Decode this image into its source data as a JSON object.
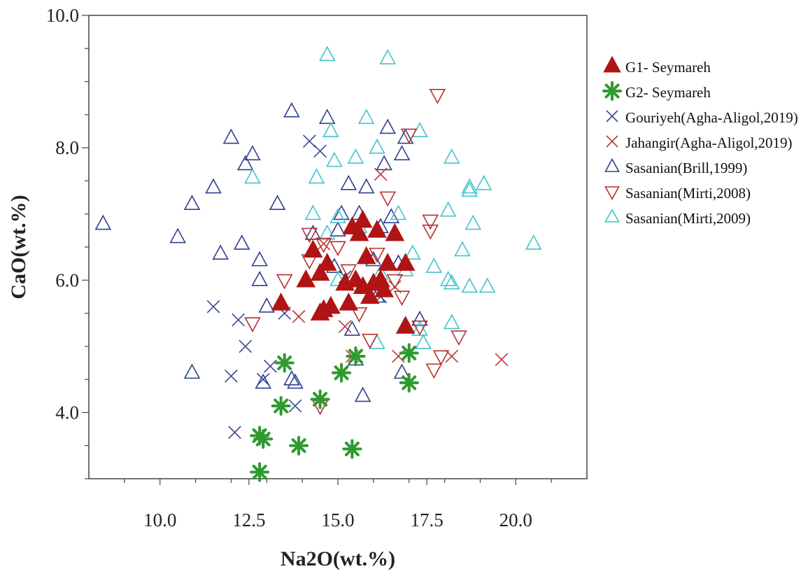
{
  "chart_data": {
    "type": "scatter",
    "xlabel": "Na2O(wt.%)",
    "ylabel": "CaO(wt.%)",
    "xlim": [
      8.0,
      22.0
    ],
    "ylim": [
      3.0,
      10.0
    ],
    "x_tick_labels": [
      "10.0",
      "12.5",
      "15.0",
      "17.5",
      "20.0"
    ],
    "y_tick_labels": [
      "4.0",
      "6.0",
      "8.0",
      "10.0"
    ],
    "legend_position": "right",
    "series": [
      {
        "name": "G1- Seymareh",
        "marker": "filled-triangle",
        "color": "#b01414",
        "points": [
          [
            13.4,
            5.65
          ],
          [
            14.1,
            6.0
          ],
          [
            14.3,
            6.45
          ],
          [
            14.5,
            6.1
          ],
          [
            14.5,
            5.5
          ],
          [
            14.6,
            5.55
          ],
          [
            14.7,
            6.25
          ],
          [
            14.8,
            5.6
          ],
          [
            15.2,
            5.95
          ],
          [
            15.3,
            5.65
          ],
          [
            15.4,
            6.8
          ],
          [
            15.5,
            6.0
          ],
          [
            15.6,
            6.7
          ],
          [
            15.7,
            6.9
          ],
          [
            15.8,
            6.35
          ],
          [
            15.9,
            5.75
          ],
          [
            16.0,
            5.95
          ],
          [
            16.1,
            6.75
          ],
          [
            16.2,
            6.0
          ],
          [
            16.3,
            5.85
          ],
          [
            16.4,
            6.25
          ],
          [
            16.6,
            6.7
          ],
          [
            16.9,
            6.25
          ],
          [
            16.9,
            5.3
          ],
          [
            15.7,
            5.9
          ]
        ]
      },
      {
        "name": "G2- Seymareh",
        "marker": "star",
        "color": "#2f9a2f",
        "points": [
          [
            12.8,
            3.65
          ],
          [
            12.9,
            3.6
          ],
          [
            12.8,
            3.1
          ],
          [
            13.4,
            4.1
          ],
          [
            13.5,
            4.75
          ],
          [
            13.9,
            3.5
          ],
          [
            14.5,
            4.2
          ],
          [
            15.1,
            4.6
          ],
          [
            15.4,
            3.45
          ],
          [
            15.5,
            4.85
          ],
          [
            17.0,
            4.9
          ],
          [
            17.0,
            4.45
          ]
        ]
      },
      {
        "name": "Gouriyeh(Agha-Aligol,2019)",
        "marker": "x",
        "color": "#3a4a8c",
        "points": [
          [
            11.5,
            5.6
          ],
          [
            12.2,
            5.4
          ],
          [
            12.0,
            4.55
          ],
          [
            12.4,
            5.0
          ],
          [
            12.9,
            4.5
          ],
          [
            13.1,
            4.7
          ],
          [
            13.5,
            5.5
          ],
          [
            13.8,
            4.1
          ],
          [
            12.1,
            3.7
          ],
          [
            14.2,
            8.1
          ],
          [
            14.5,
            7.95
          ],
          [
            16.2,
            5.75
          ],
          [
            15.2,
            6.05
          ]
        ]
      },
      {
        "name": "Jahangir(Agha-Aligol,2019)",
        "marker": "x",
        "color": "#b83a3a",
        "points": [
          [
            13.9,
            5.45
          ],
          [
            15.2,
            5.3
          ],
          [
            15.4,
            4.85
          ],
          [
            16.2,
            7.6
          ],
          [
            16.6,
            5.9
          ],
          [
            16.7,
            4.85
          ],
          [
            18.2,
            4.85
          ],
          [
            19.6,
            4.8
          ],
          [
            14.6,
            6.55
          ]
        ]
      },
      {
        "name": "Sasanian(Brill,1999)",
        "marker": "triangle",
        "color": "#2f3f8f",
        "points": [
          [
            8.4,
            6.85
          ],
          [
            10.5,
            6.65
          ],
          [
            10.9,
            7.15
          ],
          [
            10.9,
            4.6
          ],
          [
            11.5,
            7.4
          ],
          [
            11.7,
            6.4
          ],
          [
            12.0,
            8.15
          ],
          [
            12.3,
            6.55
          ],
          [
            12.4,
            7.75
          ],
          [
            12.6,
            7.9
          ],
          [
            12.8,
            6.3
          ],
          [
            12.8,
            6.0
          ],
          [
            13.0,
            5.6
          ],
          [
            12.9,
            4.45
          ],
          [
            13.3,
            7.15
          ],
          [
            13.7,
            8.55
          ],
          [
            13.7,
            4.5
          ],
          [
            13.8,
            4.45
          ],
          [
            14.3,
            6.7
          ],
          [
            14.7,
            8.45
          ],
          [
            14.9,
            6.2
          ],
          [
            15.1,
            7.0
          ],
          [
            15.3,
            7.45
          ],
          [
            15.4,
            5.25
          ],
          [
            15.5,
            4.8
          ],
          [
            15.6,
            7.0
          ],
          [
            15.7,
            4.25
          ],
          [
            15.8,
            7.4
          ],
          [
            16.0,
            6.3
          ],
          [
            16.1,
            5.75
          ],
          [
            16.3,
            7.75
          ],
          [
            16.4,
            8.3
          ],
          [
            16.5,
            6.95
          ],
          [
            16.7,
            6.25
          ],
          [
            16.8,
            7.9
          ],
          [
            16.9,
            8.15
          ],
          [
            16.8,
            4.6
          ],
          [
            17.3,
            5.4
          ],
          [
            15.0,
            6.75
          ],
          [
            16.2,
            6.8
          ]
        ]
      },
      {
        "name": "Sasanian(Mirti,2008)",
        "marker": "inverted-triangle",
        "color": "#b83030",
        "points": [
          [
            12.6,
            5.35
          ],
          [
            13.5,
            6.0
          ],
          [
            14.2,
            6.7
          ],
          [
            14.6,
            6.55
          ],
          [
            15.0,
            6.5
          ],
          [
            15.3,
            6.15
          ],
          [
            15.6,
            5.5
          ],
          [
            15.9,
            5.1
          ],
          [
            16.1,
            6.4
          ],
          [
            16.4,
            7.25
          ],
          [
            16.6,
            6.0
          ],
          [
            16.8,
            5.75
          ],
          [
            17.0,
            8.2
          ],
          [
            17.3,
            5.3
          ],
          [
            17.6,
            6.9
          ],
          [
            17.6,
            6.75
          ],
          [
            17.7,
            4.65
          ],
          [
            17.8,
            8.8
          ],
          [
            17.9,
            4.85
          ],
          [
            18.4,
            5.15
          ],
          [
            14.5,
            4.1
          ],
          [
            14.2,
            6.3
          ]
        ]
      },
      {
        "name": "Sasanian(Mirti,2009)",
        "marker": "triangle",
        "color": "#43c4cc",
        "points": [
          [
            14.7,
            9.4
          ],
          [
            16.4,
            9.35
          ],
          [
            14.8,
            8.25
          ],
          [
            15.8,
            8.45
          ],
          [
            17.3,
            8.25
          ],
          [
            12.6,
            7.55
          ],
          [
            14.4,
            7.55
          ],
          [
            14.9,
            7.8
          ],
          [
            15.5,
            7.85
          ],
          [
            16.1,
            8.0
          ],
          [
            18.2,
            7.85
          ],
          [
            18.7,
            7.35
          ],
          [
            18.7,
            7.4
          ],
          [
            19.1,
            7.45
          ],
          [
            14.3,
            7.0
          ],
          [
            14.7,
            6.7
          ],
          [
            15.0,
            6.95
          ],
          [
            15.6,
            6.8
          ],
          [
            16.7,
            7.0
          ],
          [
            18.1,
            7.05
          ],
          [
            18.8,
            6.85
          ],
          [
            20.5,
            6.55
          ],
          [
            15.0,
            6.0
          ],
          [
            16.2,
            6.1
          ],
          [
            16.9,
            6.15
          ],
          [
            17.1,
            6.4
          ],
          [
            17.7,
            6.2
          ],
          [
            18.5,
            6.45
          ],
          [
            18.1,
            6.0
          ],
          [
            18.2,
            5.95
          ],
          [
            18.7,
            5.9
          ],
          [
            19.2,
            5.9
          ],
          [
            16.1,
            5.05
          ],
          [
            17.3,
            5.25
          ],
          [
            18.2,
            5.35
          ],
          [
            17.4,
            5.05
          ]
        ]
      }
    ]
  }
}
